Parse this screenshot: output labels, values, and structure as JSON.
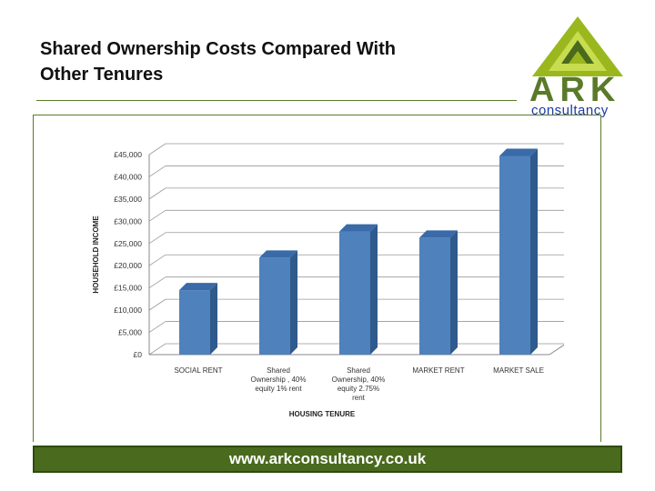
{
  "slide": {
    "title_line1": "Shared Ownership Costs Compared With",
    "title_line2": "Other Tenures"
  },
  "logo": {
    "word": "ARK",
    "sub": "consultancy"
  },
  "footer": {
    "url": "www.arkconsultancy.co.uk"
  },
  "colors": {
    "bar": "#4f81bd",
    "bar_side": "#2f5a8c",
    "bar_top": "#3a6aa8",
    "brand_green": "#5a7a2a",
    "footer_bg": "#4a6a1e"
  },
  "chart_data": {
    "type": "bar",
    "title": "",
    "xlabel": "HOUSING TENURE",
    "ylabel": "HOUSEHOLD INCOME",
    "ylim": [
      0,
      45000
    ],
    "yticks": [
      0,
      5000,
      10000,
      15000,
      20000,
      25000,
      30000,
      35000,
      40000,
      45000
    ],
    "ytick_labels": [
      "£0",
      "£5,000",
      "£10,000",
      "£15,000",
      "£20,000",
      "£25,000",
      "£30,000",
      "£35,000",
      "£40,000",
      "£45,000"
    ],
    "categories": [
      [
        "SOCIAL RENT"
      ],
      [
        "Shared",
        "Ownership , 40%",
        "equity 1% rent"
      ],
      [
        "Shared",
        "Ownership, 40%",
        "equity 2.75%",
        "rent"
      ],
      [
        "MARKET RENT"
      ],
      [
        "MARKET SALE"
      ]
    ],
    "values": [
      14500,
      21800,
      27700,
      26300,
      44700
    ],
    "grid": true,
    "legend": "none"
  }
}
